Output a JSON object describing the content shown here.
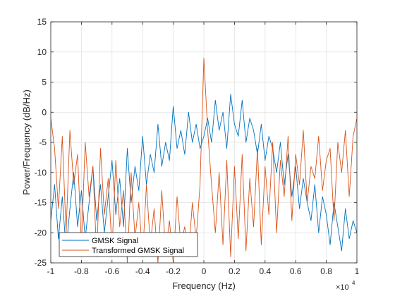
{
  "chart_data": {
    "type": "line",
    "xlabel": "Frequency (Hz)",
    "ylabel": "Power/Frequency (dB/Hz)",
    "x_multiplier_base": "×10",
    "x_multiplier_exp": "4",
    "xlim": [
      -10000,
      10000
    ],
    "ylim": [
      -25,
      15
    ],
    "xticks": [
      -10000,
      -8000,
      -6000,
      -4000,
      -2000,
      0,
      2000,
      4000,
      6000,
      8000,
      10000
    ],
    "xtick_labels": [
      "-1",
      "-0.8",
      "-0.6",
      "-0.4",
      "-0.2",
      "0",
      "0.2",
      "0.4",
      "0.6",
      "0.8",
      "1"
    ],
    "yticks": [
      -25,
      -20,
      -15,
      -10,
      -5,
      0,
      5,
      10,
      15
    ],
    "ytick_labels": [
      "-25",
      "-20",
      "-15",
      "-10",
      "-5",
      "0",
      "5",
      "10",
      "15"
    ],
    "grid": true,
    "legend_location": "bottom-left",
    "series": [
      {
        "name": "GMSK Signal",
        "color": "#0072BD",
        "x": [
          -10000,
          -9750,
          -9500,
          -9250,
          -9000,
          -8750,
          -8500,
          -8250,
          -8000,
          -7750,
          -7500,
          -7250,
          -7000,
          -6750,
          -6500,
          -6250,
          -6000,
          -5750,
          -5500,
          -5250,
          -5000,
          -4750,
          -4500,
          -4250,
          -4000,
          -3750,
          -3500,
          -3250,
          -3000,
          -2750,
          -2500,
          -2250,
          -2000,
          -1750,
          -1500,
          -1250,
          -1000,
          -750,
          -500,
          -250,
          0,
          250,
          500,
          750,
          1000,
          1250,
          1500,
          1750,
          2000,
          2250,
          2500,
          2750,
          3000,
          3250,
          3500,
          3750,
          4000,
          4250,
          4500,
          4750,
          5000,
          5250,
          5500,
          5750,
          6000,
          6250,
          6500,
          6750,
          7000,
          7250,
          7500,
          7750,
          8000,
          8250,
          8500,
          8750,
          9000,
          9250,
          9500,
          9750,
          10000
        ],
        "values": [
          -18,
          -12,
          -21,
          -14,
          -23,
          -16,
          -10,
          -19,
          -13,
          -21,
          -15,
          -9,
          -18,
          -12,
          -20,
          -14,
          -8,
          -17,
          -11,
          -19,
          -6,
          -15,
          -9,
          -13,
          -4,
          -12,
          -7,
          -10,
          -2,
          -9,
          -5,
          -8,
          1,
          -6,
          -3,
          -7,
          0,
          -5,
          -2,
          -6,
          -4,
          -1,
          -5,
          2,
          -3,
          0,
          -6,
          3,
          -2,
          -4,
          2,
          -5,
          -1,
          -3,
          -7,
          -2,
          -8,
          -4,
          -6,
          -10,
          -5,
          -12,
          -7,
          -14,
          -9,
          -16,
          -11,
          -15,
          -18,
          -12,
          -20,
          -14,
          -17,
          -22,
          -15,
          -19,
          -23,
          -16,
          -21,
          -18,
          -20
        ]
      },
      {
        "name": "Transformed GMSK Signal",
        "color": "#D95319",
        "x": [
          -10000,
          -9750,
          -9500,
          -9250,
          -9000,
          -8750,
          -8500,
          -8250,
          -8000,
          -7750,
          -7500,
          -7250,
          -7000,
          -6750,
          -6500,
          -6250,
          -6000,
          -5750,
          -5500,
          -5250,
          -5000,
          -4750,
          -4500,
          -4250,
          -4000,
          -3750,
          -3500,
          -3250,
          -3000,
          -2750,
          -2500,
          -2250,
          -2000,
          -1750,
          -1500,
          -1250,
          -1000,
          -750,
          -500,
          -250,
          0,
          250,
          500,
          750,
          1000,
          1250,
          1500,
          1750,
          2000,
          2250,
          2500,
          2750,
          3000,
          3250,
          3500,
          3750,
          4000,
          4250,
          4500,
          4750,
          5000,
          5250,
          5500,
          5750,
          6000,
          6250,
          6500,
          6750,
          7000,
          7250,
          7500,
          7750,
          8000,
          8250,
          8500,
          8750,
          9000,
          9250,
          9500,
          9750,
          10000
        ],
        "values": [
          -1,
          -6,
          -16,
          -4,
          -20,
          -3,
          -12,
          -7,
          -22,
          -5,
          -14,
          -9,
          -24,
          -6,
          -17,
          -11,
          -23,
          -8,
          -19,
          -13,
          -25,
          -10,
          -21,
          -15,
          -24,
          -12,
          -22,
          -16,
          -25,
          -13,
          -23,
          -18,
          -25,
          -14,
          -22,
          -19,
          -24,
          -15,
          -21,
          -12,
          9,
          -3,
          -12,
          -20,
          -10,
          -22,
          -8,
          -24,
          -9,
          -21,
          -7,
          -23,
          -11,
          -19,
          -6,
          -22,
          -9,
          -17,
          -5,
          -20,
          -8,
          -14,
          -4,
          -18,
          -7,
          -12,
          -3,
          -15,
          -9,
          -11,
          -4,
          -13,
          -8,
          -6,
          -18,
          -5,
          -10,
          -3,
          -14,
          -4,
          -1
        ]
      }
    ]
  }
}
